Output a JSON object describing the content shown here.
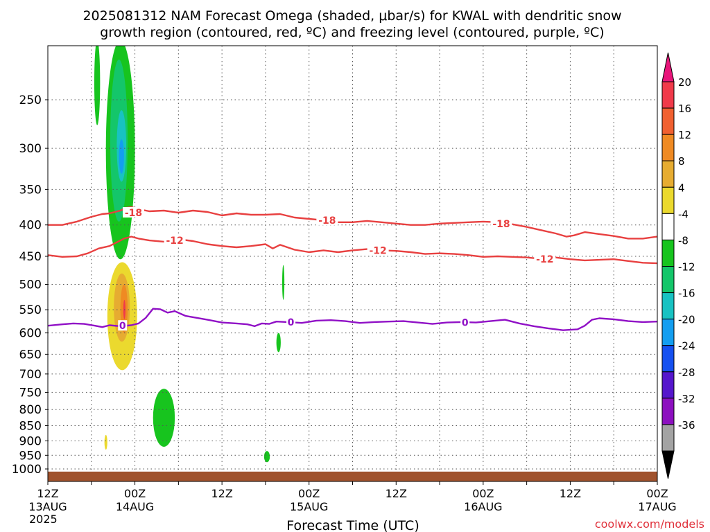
{
  "title": {
    "line1": "2025081312 NAM Forecast Omega (shaded, μbar/s) for KWAL with dendritic snow",
    "line2": "growth region (contoured, red, ºC) and freezing level (contoured, purple, ºC)"
  },
  "xlabel": "Forecast Time (UTC)",
  "credit": "coolwx.com/models",
  "chart_data": {
    "type": "contour",
    "x_ticks": [
      {
        "hours": 0,
        "label": "12Z",
        "sub": "13AUG",
        "sub2": "2025"
      },
      {
        "hours": 6,
        "label": "",
        "sub": "",
        "sub2": ""
      },
      {
        "hours": 12,
        "label": "00Z",
        "sub": "14AUG",
        "sub2": ""
      },
      {
        "hours": 18,
        "label": "",
        "sub": "",
        "sub2": ""
      },
      {
        "hours": 24,
        "label": "12Z",
        "sub": "",
        "sub2": ""
      },
      {
        "hours": 30,
        "label": "",
        "sub": "",
        "sub2": ""
      },
      {
        "hours": 36,
        "label": "00Z",
        "sub": "15AUG",
        "sub2": ""
      },
      {
        "hours": 42,
        "label": "",
        "sub": "",
        "sub2": ""
      },
      {
        "hours": 48,
        "label": "12Z",
        "sub": "",
        "sub2": ""
      },
      {
        "hours": 54,
        "label": "",
        "sub": "",
        "sub2": ""
      },
      {
        "hours": 60,
        "label": "00Z",
        "sub": "16AUG",
        "sub2": ""
      },
      {
        "hours": 66,
        "label": "",
        "sub": "",
        "sub2": ""
      },
      {
        "hours": 72,
        "label": "12Z",
        "sub": "",
        "sub2": ""
      },
      {
        "hours": 78,
        "label": "",
        "sub": "",
        "sub2": ""
      },
      {
        "hours": 84,
        "label": "00Z",
        "sub": "17AUG",
        "sub2": ""
      }
    ],
    "y_ticks": [
      250,
      300,
      350,
      400,
      450,
      500,
      550,
      600,
      650,
      700,
      750,
      800,
      850,
      900,
      950,
      1000
    ],
    "y_range_hpa": [
      200,
      1010
    ],
    "x_range_hours": [
      0,
      84
    ],
    "colorbar": {
      "labels": [
        "20",
        "16",
        "12",
        "8",
        "4",
        "-4",
        "-8",
        "-12",
        "-16",
        "-20",
        "-24",
        "-28",
        "-32",
        "-36"
      ],
      "bins": [
        {
          "color": "#f03a4a"
        },
        {
          "color": "#f06030"
        },
        {
          "color": "#ef8a23"
        },
        {
          "color": "#e6ac31"
        },
        {
          "color": "#ebd92e"
        },
        {
          "color": "#ffffff"
        },
        {
          "color": "#17c41e"
        },
        {
          "color": "#14c66a"
        },
        {
          "color": "#18c2c2"
        },
        {
          "color": "#139ef0"
        },
        {
          "color": "#1550f0"
        },
        {
          "color": "#5516cc"
        },
        {
          "color": "#8c10bf"
        },
        {
          "color": "#a3a3a3"
        }
      ],
      "top_color": "#e8157a",
      "bottom_color": "#000000"
    },
    "contours": [
      {
        "label": "-18",
        "color": "#e84040",
        "x": [
          0,
          2,
          4,
          6,
          7.5,
          8.5,
          10,
          10.8,
          11.5,
          12.5,
          14,
          16,
          18,
          20,
          22,
          24,
          26,
          28,
          30,
          32,
          34,
          36,
          38,
          40,
          42,
          44,
          46,
          48,
          50,
          52,
          54,
          56,
          58,
          60,
          62,
          64,
          66,
          68,
          70,
          71.5,
          72.5,
          74,
          76,
          78,
          80,
          82,
          84
        ],
        "y": [
          400,
          400,
          395,
          388,
          384,
          383,
          379,
          375,
          374,
          377,
          380,
          379,
          382,
          379,
          381,
          386,
          383,
          385,
          385,
          384,
          389,
          391,
          393,
          396,
          396,
          394,
          396,
          398,
          400,
          400,
          398,
          397,
          396,
          395,
          396,
          399,
          403,
          408,
          413,
          418,
          416,
          411,
          414,
          417,
          421,
          421,
          418
        ],
        "labels_at": [
          {
            "x": 11.8,
            "y": 382
          },
          {
            "x": 38.5,
            "y": 393
          },
          {
            "x": 62.5,
            "y": 398
          }
        ]
      },
      {
        "label": "-12",
        "color": "#e84040",
        "x": [
          0,
          2,
          4,
          5.5,
          7,
          8.5,
          9.5,
          10.5,
          11.5,
          12.5,
          14,
          16,
          18,
          20,
          22,
          24,
          26,
          28,
          30,
          31,
          32,
          34,
          36,
          38,
          40,
          42,
          44,
          46,
          48,
          50,
          52,
          54,
          56,
          58,
          60,
          62,
          64,
          66,
          68,
          70,
          72,
          74,
          76,
          78,
          80,
          82,
          84
        ],
        "y": [
          448,
          451,
          450,
          445,
          437,
          433,
          427,
          421,
          418,
          421,
          424,
          426,
          422,
          425,
          430,
          433,
          435,
          433,
          430,
          437,
          431,
          439,
          443,
          440,
          443,
          440,
          438,
          440,
          441,
          443,
          446,
          445,
          446,
          448,
          451,
          450,
          451,
          452,
          454,
          452,
          455,
          457,
          456,
          455,
          458,
          461,
          462
        ],
        "labels_at": [
          {
            "x": 17.5,
            "y": 424
          },
          {
            "x": 45.5,
            "y": 440
          },
          {
            "x": 68.5,
            "y": 455
          }
        ]
      },
      {
        "label": "0",
        "color": "#9010c6",
        "x": [
          0,
          2,
          3.5,
          5,
          6.5,
          7.5,
          8.5,
          10,
          11.5,
          12.5,
          13.5,
          14.5,
          15.5,
          16.5,
          17.5,
          19,
          20.5,
          22,
          24,
          26,
          27.5,
          28.5,
          29.5,
          30.5,
          31.5,
          33,
          35,
          37,
          39,
          41,
          43,
          45,
          47,
          49,
          51,
          53,
          55,
          57,
          59,
          61,
          63,
          65,
          67,
          69,
          71,
          73,
          74,
          75,
          76,
          78,
          80,
          82,
          84
        ],
        "y": [
          584,
          581,
          579,
          580,
          584,
          587,
          583,
          585,
          583,
          579,
          567,
          548,
          549,
          556,
          553,
          563,
          567,
          571,
          577,
          579,
          581,
          585,
          579,
          580,
          575,
          576,
          578,
          573,
          572,
          574,
          578,
          576,
          575,
          574,
          577,
          580,
          577,
          576,
          577,
          574,
          571,
          579,
          585,
          590,
          594,
          592,
          584,
          571,
          568,
          570,
          574,
          576,
          575
        ],
        "labels_at": [
          {
            "x": 10.3,
            "y": 584
          },
          {
            "x": 33.5,
            "y": 576
          },
          {
            "x": 57.5,
            "y": 577
          }
        ]
      }
    ],
    "omega_features": [
      {
        "value": -8,
        "desc": "thin green sliver",
        "hours": [
          6.4,
          7.2
        ],
        "hpa": [
          200,
          275
        ]
      },
      {
        "value": -8,
        "desc": "upper ascent column",
        "hours": [
          8,
          12
        ],
        "hpa": [
          200,
          455
        ]
      },
      {
        "value": -12,
        "desc": "upper ascent column",
        "hours": [
          8.6,
          11
        ],
        "hpa": [
          215,
          395
        ]
      },
      {
        "value": -16,
        "desc": "upper ascent column",
        "hours": [
          9.5,
          10.8
        ],
        "hpa": [
          260,
          340
        ]
      },
      {
        "value": -20,
        "desc": "upper ascent core",
        "hours": [
          9.8,
          10.5
        ],
        "hpa": [
          290,
          330
        ]
      },
      {
        "value": 4,
        "desc": "descent blob",
        "hours": [
          8.2,
          12.3
        ],
        "hpa": [
          460,
          690
        ]
      },
      {
        "value": 8,
        "desc": "descent blob",
        "hours": [
          9.1,
          11.3
        ],
        "hpa": [
          480,
          620
        ]
      },
      {
        "value": 12,
        "desc": "descent blob",
        "hours": [
          10,
          11
        ],
        "hpa": [
          500,
          600
        ]
      },
      {
        "value": 16,
        "desc": "descent core",
        "hours": [
          10.4,
          10.7
        ],
        "hpa": [
          530,
          570
        ]
      },
      {
        "value": -8,
        "desc": "low-level ascent",
        "hours": [
          14.5,
          17.5
        ],
        "hpa": [
          740,
          920
        ]
      },
      {
        "value": -8,
        "desc": "mid-level ascent",
        "hours": [
          32.3,
          32.6
        ],
        "hpa": [
          465,
          530
        ]
      },
      {
        "value": -8,
        "desc": "mid-level ascent",
        "hours": [
          31.5,
          32.1
        ],
        "hpa": [
          600,
          645
        ]
      },
      {
        "value": -8,
        "desc": "near-surface ascent",
        "hours": [
          29.8,
          30.6
        ],
        "hpa": [
          935,
          975
        ]
      },
      {
        "value": 4,
        "desc": "tiny descent spot",
        "hours": [
          7.8,
          8.2
        ],
        "hpa": [
          880,
          930
        ]
      }
    ],
    "terrain": {
      "color": "#a0522d",
      "pressure_hpa": 1010
    }
  }
}
